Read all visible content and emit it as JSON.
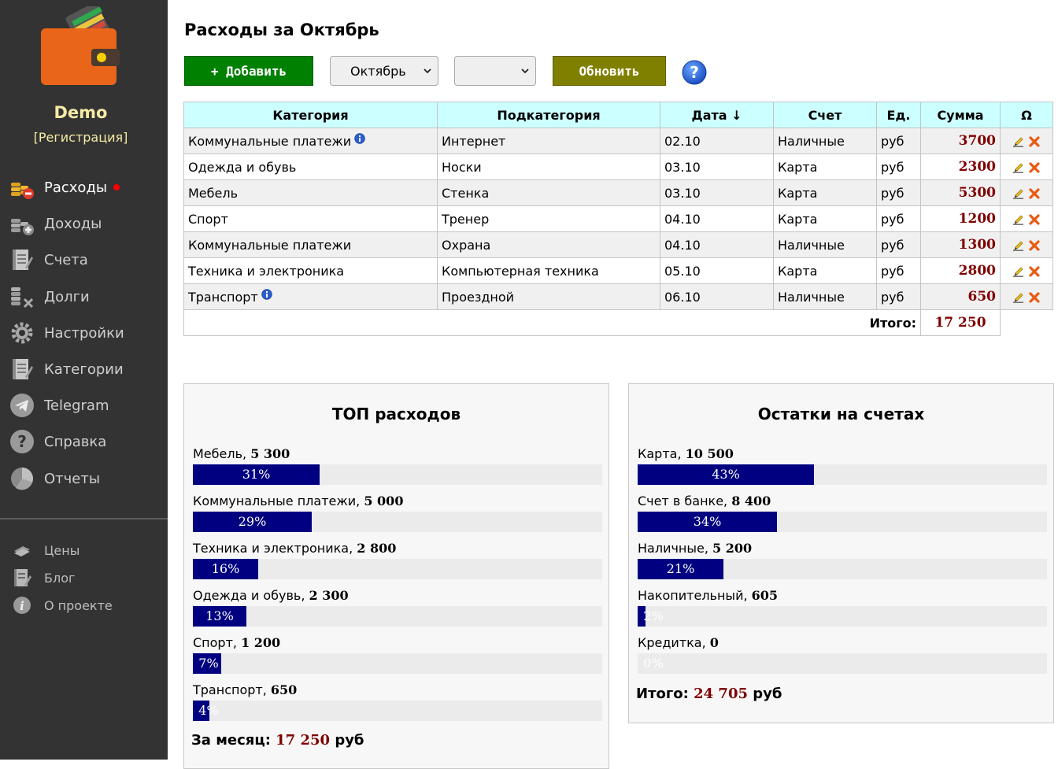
{
  "sidebar": {
    "user": "Demo",
    "register": "[Регистрация]",
    "nav": [
      {
        "label": "Расходы",
        "icon": "expenses-coins-icon",
        "active": true
      },
      {
        "label": "Доходы",
        "icon": "income-coins-icon"
      },
      {
        "label": "Счета",
        "icon": "accounts-notebook-icon"
      },
      {
        "label": "Долги",
        "icon": "debts-coins-icon"
      },
      {
        "label": "Настройки",
        "icon": "settings-gear-icon"
      },
      {
        "label": "Категории",
        "icon": "categories-notebook-icon"
      },
      {
        "label": "Telegram",
        "icon": "telegram-icon"
      },
      {
        "label": "Справка",
        "icon": "help-question-icon"
      },
      {
        "label": "Отчеты",
        "icon": "reports-pie-icon"
      }
    ],
    "secondary": [
      {
        "label": "Цены",
        "icon": "prices-banknotes-icon"
      },
      {
        "label": "Блог",
        "icon": "blog-notebook-icon"
      },
      {
        "label": "О проекте",
        "icon": "about-info-icon"
      }
    ]
  },
  "header": {
    "title": "Расходы за Октябрь",
    "add_label": "+ Добавить",
    "month_select": "Октябрь",
    "second_select": "",
    "refresh_label": "Обновить"
  },
  "table": {
    "columns": [
      "Категория",
      "Подкатегория",
      "Дата ↓",
      "Счет",
      "Ед.",
      "Сумма",
      "Ω"
    ],
    "rows": [
      {
        "category": "Коммунальные платежи",
        "info": true,
        "subcategory": "Интернет",
        "date": "02.10",
        "account": "Наличные",
        "unit": "руб",
        "amount": "3700"
      },
      {
        "category": "Одежда и обувь",
        "info": false,
        "subcategory": "Носки",
        "date": "03.10",
        "account": "Карта",
        "unit": "руб",
        "amount": "2300"
      },
      {
        "category": "Мебель",
        "info": false,
        "subcategory": "Стенка",
        "date": "03.10",
        "account": "Карта",
        "unit": "руб",
        "amount": "5300"
      },
      {
        "category": "Спорт",
        "info": false,
        "subcategory": "Тренер",
        "date": "04.10",
        "account": "Карта",
        "unit": "руб",
        "amount": "1200"
      },
      {
        "category": "Коммунальные платежи",
        "info": false,
        "subcategory": "Охрана",
        "date": "04.10",
        "account": "Наличные",
        "unit": "руб",
        "amount": "1300"
      },
      {
        "category": "Техника и электроника",
        "info": false,
        "subcategory": "Компьютерная техника",
        "date": "05.10",
        "account": "Карта",
        "unit": "руб",
        "amount": "2800"
      },
      {
        "category": "Транспорт",
        "info": true,
        "subcategory": "Проездной",
        "date": "06.10",
        "account": "Наличные",
        "unit": "руб",
        "amount": "650"
      }
    ],
    "total_label": "Итого:",
    "total_value": "17 250"
  },
  "top_expenses": {
    "title": "ТОП расходов",
    "items": [
      {
        "name": "Мебель, ",
        "value": "5 300",
        "percent": 31,
        "percent_label": "31%"
      },
      {
        "name": "Коммунальные платежи, ",
        "value": "5 000",
        "percent": 29,
        "percent_label": "29%"
      },
      {
        "name": "Техника и электроника, ",
        "value": "2 800",
        "percent": 16,
        "percent_label": "16%"
      },
      {
        "name": "Одежда и обувь, ",
        "value": "2 300",
        "percent": 13,
        "percent_label": "13%"
      },
      {
        "name": "Спорт, ",
        "value": "1 200",
        "percent": 7,
        "percent_label": "7%"
      },
      {
        "name": "Транспорт, ",
        "value": "650",
        "percent": 4,
        "percent_label": "4%"
      }
    ],
    "total_label": "За месяц: ",
    "total_value": "17 250",
    "total_unit": " руб"
  },
  "balances": {
    "title": "Остатки на счетах",
    "items": [
      {
        "name": "Карта, ",
        "value": "10 500",
        "percent": 43,
        "percent_label": "43%"
      },
      {
        "name": "Счет в банке, ",
        "value": "8 400",
        "percent": 34,
        "percent_label": "34%"
      },
      {
        "name": "Наличные, ",
        "value": "5 200",
        "percent": 21,
        "percent_label": "21%"
      },
      {
        "name": "Накопительный, ",
        "value": "605",
        "percent": 2,
        "percent_label": "2%"
      },
      {
        "name": "Кредитка, ",
        "value": "0",
        "percent": 0,
        "percent_label": "0%"
      }
    ],
    "total_label": "Итого: ",
    "total_value": "24 705",
    "total_unit": " руб"
  },
  "colors": {
    "sidebar_bg": "#333333",
    "accent_add": "#008000",
    "accent_refresh": "#808000",
    "bar_fill": "#000080",
    "amount": "#800000",
    "header_bg": "#ccffff"
  }
}
